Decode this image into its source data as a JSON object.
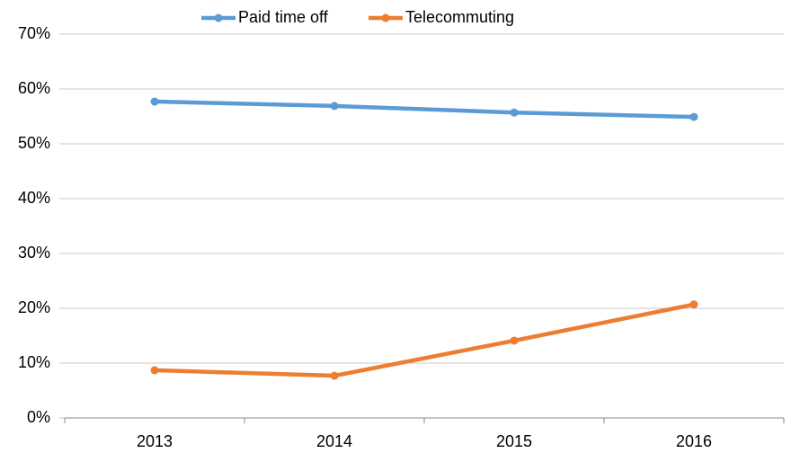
{
  "chart_data": {
    "type": "line",
    "categories": [
      "2013",
      "2014",
      "2015",
      "2016"
    ],
    "series": [
      {
        "name": "Paid time off",
        "color": "#5b9bd5",
        "values": [
          57.7,
          56.9,
          55.7,
          54.9
        ]
      },
      {
        "name": "Telecommuting",
        "color": "#ed7d31",
        "values": [
          8.7,
          7.7,
          14.1,
          20.7
        ]
      }
    ],
    "ylim": [
      0,
      70
    ],
    "yticks": [
      {
        "value": 0,
        "label": "0%"
      },
      {
        "value": 10,
        "label": "10%"
      },
      {
        "value": 20,
        "label": "20%"
      },
      {
        "value": 30,
        "label": "30%"
      },
      {
        "value": 40,
        "label": "40%"
      },
      {
        "value": 50,
        "label": "50%"
      },
      {
        "value": 60,
        "label": "60%"
      },
      {
        "value": 70,
        "label": "70%"
      }
    ],
    "grid": true,
    "legend": "top"
  }
}
